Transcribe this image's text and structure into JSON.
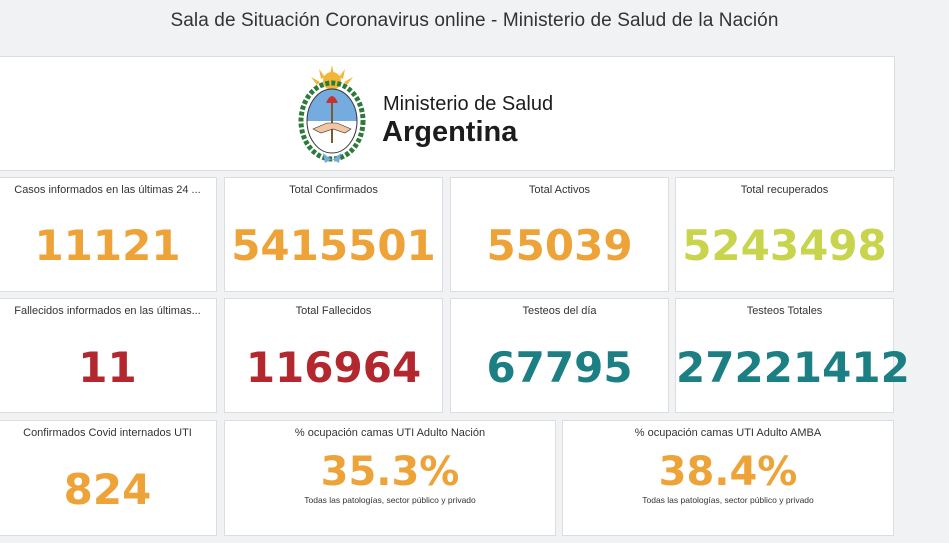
{
  "header": {
    "title": "Sala de Situación Coronavirus online - Ministerio de Salud de la Nación"
  },
  "logo": {
    "line1": "Ministerio de Salud",
    "line2": "Argentina",
    "icon": "coat-of-arms-icon"
  },
  "colors": {
    "orange": "#eda338",
    "lime": "#c8d44c",
    "red": "#b3272e",
    "teal": "#1c7f83"
  },
  "row1": [
    {
      "label": "Casos informados en las últimas 24 ...",
      "value": "11121"
    },
    {
      "label": "Total Confirmados",
      "value": "5415501"
    },
    {
      "label": "Total Activos",
      "value": "55039"
    },
    {
      "label": "Total recuperados",
      "value": "5243498"
    }
  ],
  "row2": [
    {
      "label": "Fallecidos informados en las últimas...",
      "value": "11"
    },
    {
      "label": "Total Fallecidos",
      "value": "116964"
    },
    {
      "label": "Testeos del día",
      "value": "67795"
    },
    {
      "label": "Testeos Totales",
      "value": "27221412"
    }
  ],
  "row3": [
    {
      "label": "Confirmados Covid internados UTI",
      "value": "824"
    },
    {
      "label": "% ocupación camas UTI Adulto Nación",
      "value": "35.3%",
      "sub": "Todas las patologías, sector público y privado"
    },
    {
      "label": "% ocupación camas UTI Adulto AMBA",
      "value": "38.4%",
      "sub": "Todas las patologías, sector público y privado"
    }
  ]
}
